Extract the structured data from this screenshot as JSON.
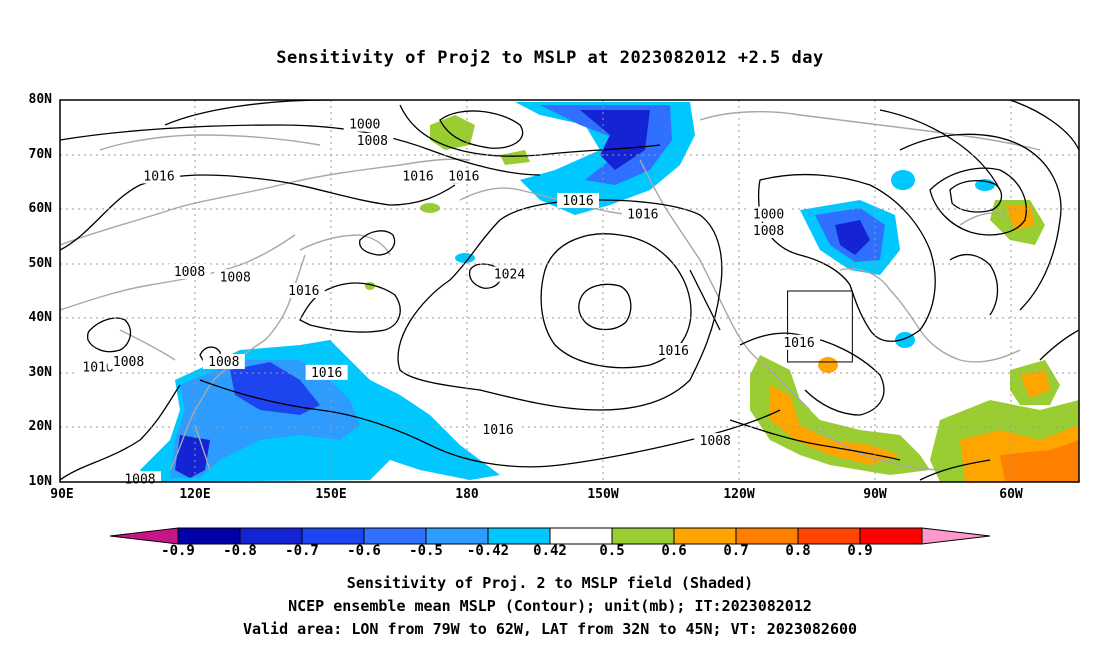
{
  "title": "Sensitivity of Proj2 to MSLP at 2023082012 +2.5 day",
  "lat_labels": [
    "80N",
    "70N",
    "60N",
    "50N",
    "40N",
    "30N",
    "20N",
    "10N"
  ],
  "lon_labels": [
    "90E",
    "120E",
    "150E",
    "180",
    "150W",
    "120W",
    "90W",
    "60W"
  ],
  "contour_labels": [
    {
      "text": "1000",
      "lon": 170,
      "lat": 75.5
    },
    {
      "text": "1008",
      "lon": 172,
      "lat": 72.5
    },
    {
      "text": "1016",
      "lon": 116,
      "lat": 66
    },
    {
      "text": "1016",
      "lon": 184,
      "lat": 66
    },
    {
      "text": "1016",
      "lon": 196,
      "lat": 66
    },
    {
      "text": "1016",
      "lon": 226,
      "lat": 61.5
    },
    {
      "text": "1016",
      "lon": 243,
      "lat": 59
    },
    {
      "text": "1000",
      "lon": 276,
      "lat": 59
    },
    {
      "text": "1008",
      "lon": 276,
      "lat": 56
    },
    {
      "text": "1008",
      "lon": 124,
      "lat": 48.5
    },
    {
      "text": "1008",
      "lon": 136,
      "lat": 47.5
    },
    {
      "text": "1024",
      "lon": 208,
      "lat": 48
    },
    {
      "text": "1016",
      "lon": 154,
      "lat": 45
    },
    {
      "text": "1016",
      "lon": 100,
      "lat": 31
    },
    {
      "text": "1008",
      "lon": 108,
      "lat": 32
    },
    {
      "text": "1008",
      "lon": 133,
      "lat": 32
    },
    {
      "text": "1016",
      "lon": 160,
      "lat": 30
    },
    {
      "text": "1016",
      "lon": 251,
      "lat": 34
    },
    {
      "text": "1016",
      "lon": 284,
      "lat": 35.5
    },
    {
      "text": "1016",
      "lon": 205,
      "lat": 19.5
    },
    {
      "text": "1008",
      "lon": 262,
      "lat": 17.5
    },
    {
      "text": "1008",
      "lon": 111,
      "lat": 10.5
    }
  ],
  "valid_area": {
    "lon_from": -79,
    "lon_to": -62,
    "lat_from": 32,
    "lat_to": 45
  },
  "colorbar": {
    "labels": [
      "-0.9",
      "-0.8",
      "-0.7",
      "-0.6",
      "-0.5",
      "-0.42",
      "0.42",
      "0.5",
      "0.6",
      "0.7",
      "0.8",
      "0.9"
    ],
    "colors": [
      "#c71585",
      "#0000a8",
      "#1424d4",
      "#1e44f0",
      "#3070ff",
      "#2e9bff",
      "#00c8ff",
      "#ffffff",
      "#9acd32",
      "#ffa500",
      "#ff7f00",
      "#ff4500",
      "#ff0000",
      "#ff99cc"
    ]
  },
  "footer": [
    "Sensitivity of Proj. 2 to MSLP field (Shaded)",
    "NCEP ensemble mean MSLP (Contour); unit(mb); IT:2023082012",
    "Valid area: LON from 79W to 62W, LAT from 32N to 45N; VT: 2023082600"
  ]
}
